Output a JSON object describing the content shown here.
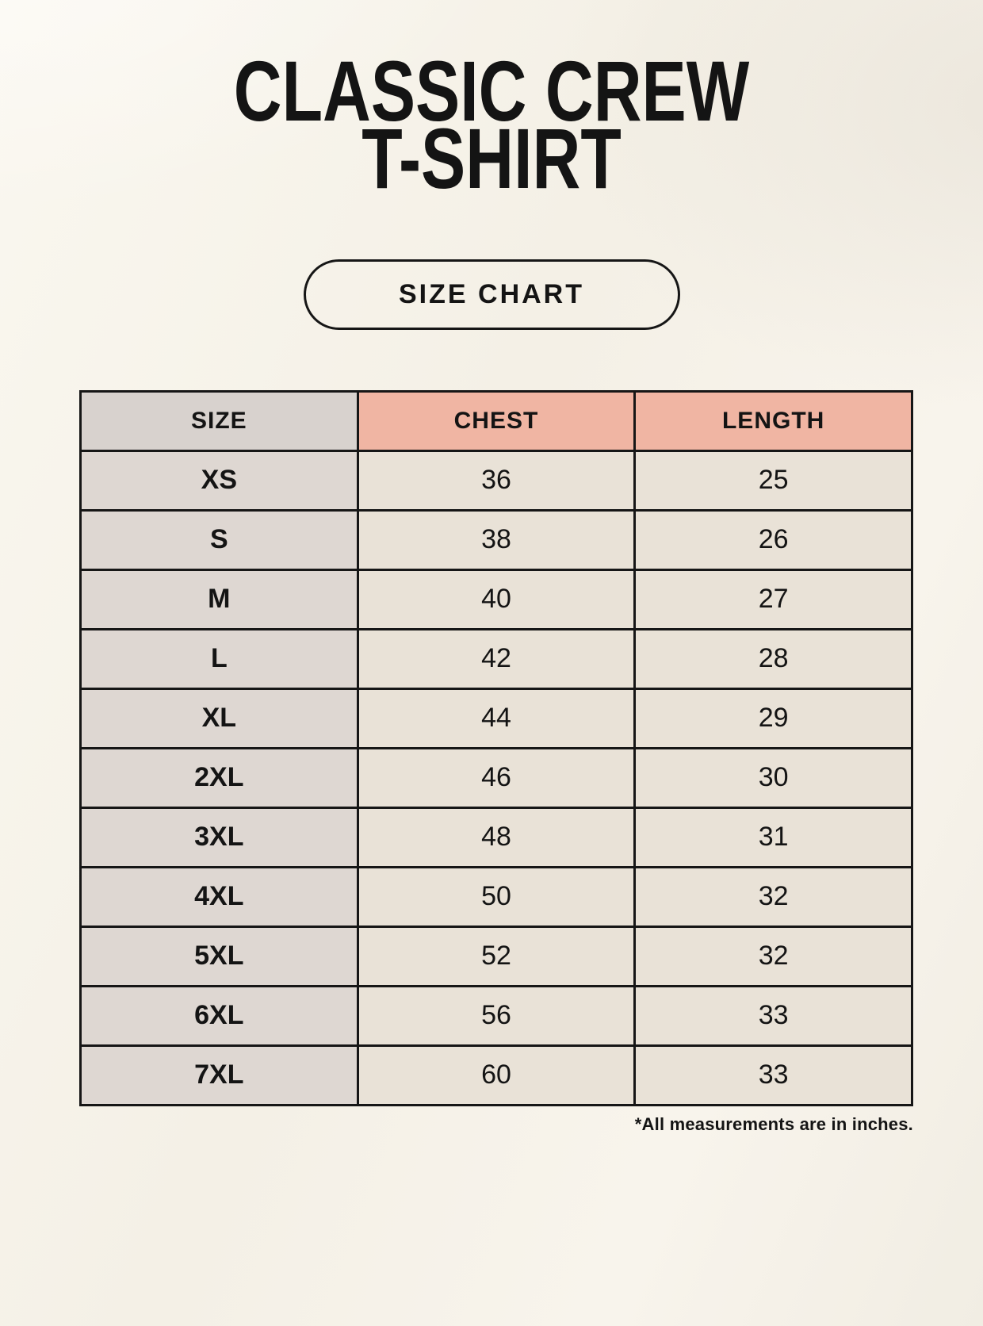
{
  "header": {
    "title_line1": "CLASSIC CREW",
    "title_line2": "T-SHIRT",
    "badge_label": "SIZE CHART"
  },
  "chart_data": {
    "type": "table",
    "title": "CLASSIC CREW T-SHIRT SIZE CHART",
    "columns": [
      "SIZE",
      "CHEST",
      "LENGTH"
    ],
    "rows": [
      [
        "XS",
        "36",
        "25"
      ],
      [
        "S",
        "38",
        "26"
      ],
      [
        "M",
        "40",
        "27"
      ],
      [
        "L",
        "42",
        "28"
      ],
      [
        "XL",
        "44",
        "29"
      ],
      [
        "2XL",
        "46",
        "30"
      ],
      [
        "3XL",
        "48",
        "31"
      ],
      [
        "4XL",
        "50",
        "32"
      ],
      [
        "5XL",
        "52",
        "32"
      ],
      [
        "6XL",
        "56",
        "33"
      ],
      [
        "7XL",
        "60",
        "33"
      ]
    ],
    "annotation": "*All measurements are in inches."
  },
  "colors": {
    "background": "#f6f2e9",
    "header_accent": "#f0b5a3",
    "size_header_cell": "#d8d2ce",
    "size_column_cell": "#ded7d2",
    "value_cell": "#e9e2d7",
    "border": "#161616",
    "text": "#141414"
  }
}
